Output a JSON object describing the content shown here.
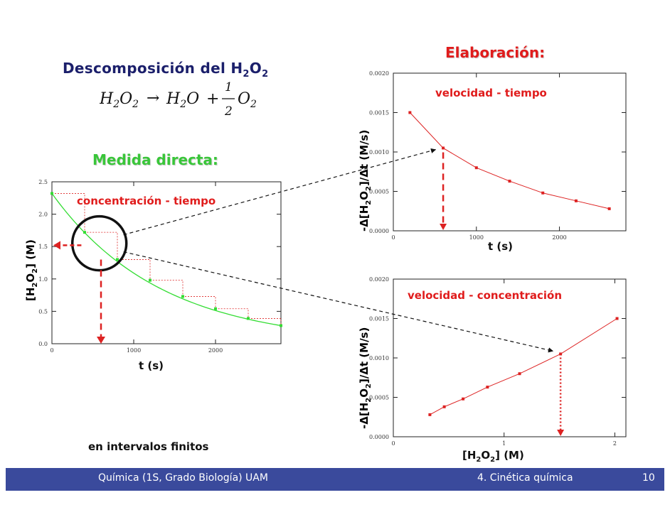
{
  "slide": {
    "title_main": "Descomposición del H",
    "title_sub1": "2",
    "title_o": "O",
    "title_sub2": "2",
    "equation": {
      "lhs": "H",
      "lhs_sub1": "2",
      "lhs_o": "O",
      "lhs_sub2": "2",
      "arrow": "→",
      "rhs1": "H",
      "rhs1_sub": "2",
      "rhs1_o": "O",
      "plus": "+",
      "frac_num": "1",
      "frac_den": "2",
      "rhs2": "O",
      "rhs2_sub": "2"
    },
    "heading_elaboracion": "Elaboración:",
    "heading_medida": "Medida directa:",
    "footnote": "en intervalos finitos",
    "footer": {
      "left": "Química (1S, Grado Biología) UAM",
      "center": "4. Cinética química",
      "page": "10"
    },
    "colors": {
      "title_blue": "#1b1f6b",
      "heading_red": "#e01c1c",
      "heading_green": "#39c639",
      "curve_green": "#33dd33",
      "series_red": "#dd2222",
      "footer_bar": "#3a4a9c"
    }
  },
  "chart_data": [
    {
      "type": "line",
      "title": "concentración - tiempo",
      "xlabel": "t   (s)",
      "ylabel_pre": "[H",
      "ylabel_sub1": "2",
      "ylabel_mid": "O",
      "ylabel_sub2": "2",
      "ylabel_post": "]   (M)",
      "xlim": [
        0,
        2800
      ],
      "ylim": [
        0,
        2.5
      ],
      "x_ticks": [
        "0",
        "1000",
        "2000"
      ],
      "y_ticks": [
        "0.0",
        "0.5",
        "1.0",
        "1.5",
        "2.0",
        "2.5"
      ],
      "series": [
        {
          "x": [
            0,
            400,
            800,
            1200,
            1600,
            2000,
            2400,
            2800
          ],
          "y": [
            2.32,
            1.72,
            1.3,
            0.98,
            0.73,
            0.54,
            0.39,
            0.28
          ]
        }
      ],
      "legend": "none",
      "grid": false
    },
    {
      "type": "line",
      "title": "velocidad - tiempo",
      "xlabel": "t   (s)",
      "ylabel_pre": "-Δ[H",
      "ylabel_sub1": "2",
      "ylabel_mid": "O",
      "ylabel_sub2": "2",
      "ylabel_post": "]/Δt   (M/s)",
      "xlim": [
        0,
        2800
      ],
      "ylim": [
        0,
        0.002
      ],
      "x_ticks": [
        "0",
        "1000",
        "2000"
      ],
      "y_ticks": [
        "0.0000",
        "0.0005",
        "0.0010",
        "0.0015",
        "0.0020"
      ],
      "series": [
        {
          "x": [
            200,
            600,
            1000,
            1400,
            1800,
            2200,
            2600
          ],
          "y": [
            0.0015,
            0.00105,
            0.0008,
            0.00063,
            0.00048,
            0.00038,
            0.00028
          ]
        }
      ],
      "legend": "none",
      "grid": false
    },
    {
      "type": "line",
      "title": "velocidad - concentración",
      "xlabel_pre": "[H",
      "xlabel_sub1": "2",
      "xlabel_mid": "O",
      "xlabel_sub2": "2",
      "xlabel_post": "]   (M)",
      "ylabel_pre": "-Δ[H",
      "ylabel_sub1": "2",
      "ylabel_mid": "O",
      "ylabel_sub2": "2",
      "ylabel_post": "]/Δt   (M/s)",
      "xlim": [
        0,
        2.1
      ],
      "ylim": [
        0,
        0.002
      ],
      "x_ticks": [
        "0",
        "1",
        "2"
      ],
      "y_ticks": [
        "0.0000",
        "0.0005",
        "0.0010",
        "0.0015",
        "0.0020"
      ],
      "series": [
        {
          "x": [
            0.33,
            0.46,
            0.63,
            0.85,
            1.14,
            1.51,
            2.02
          ],
          "y": [
            0.00028,
            0.00038,
            0.00048,
            0.00063,
            0.0008,
            0.00105,
            0.0015
          ]
        }
      ],
      "legend": "none",
      "grid": false
    }
  ]
}
